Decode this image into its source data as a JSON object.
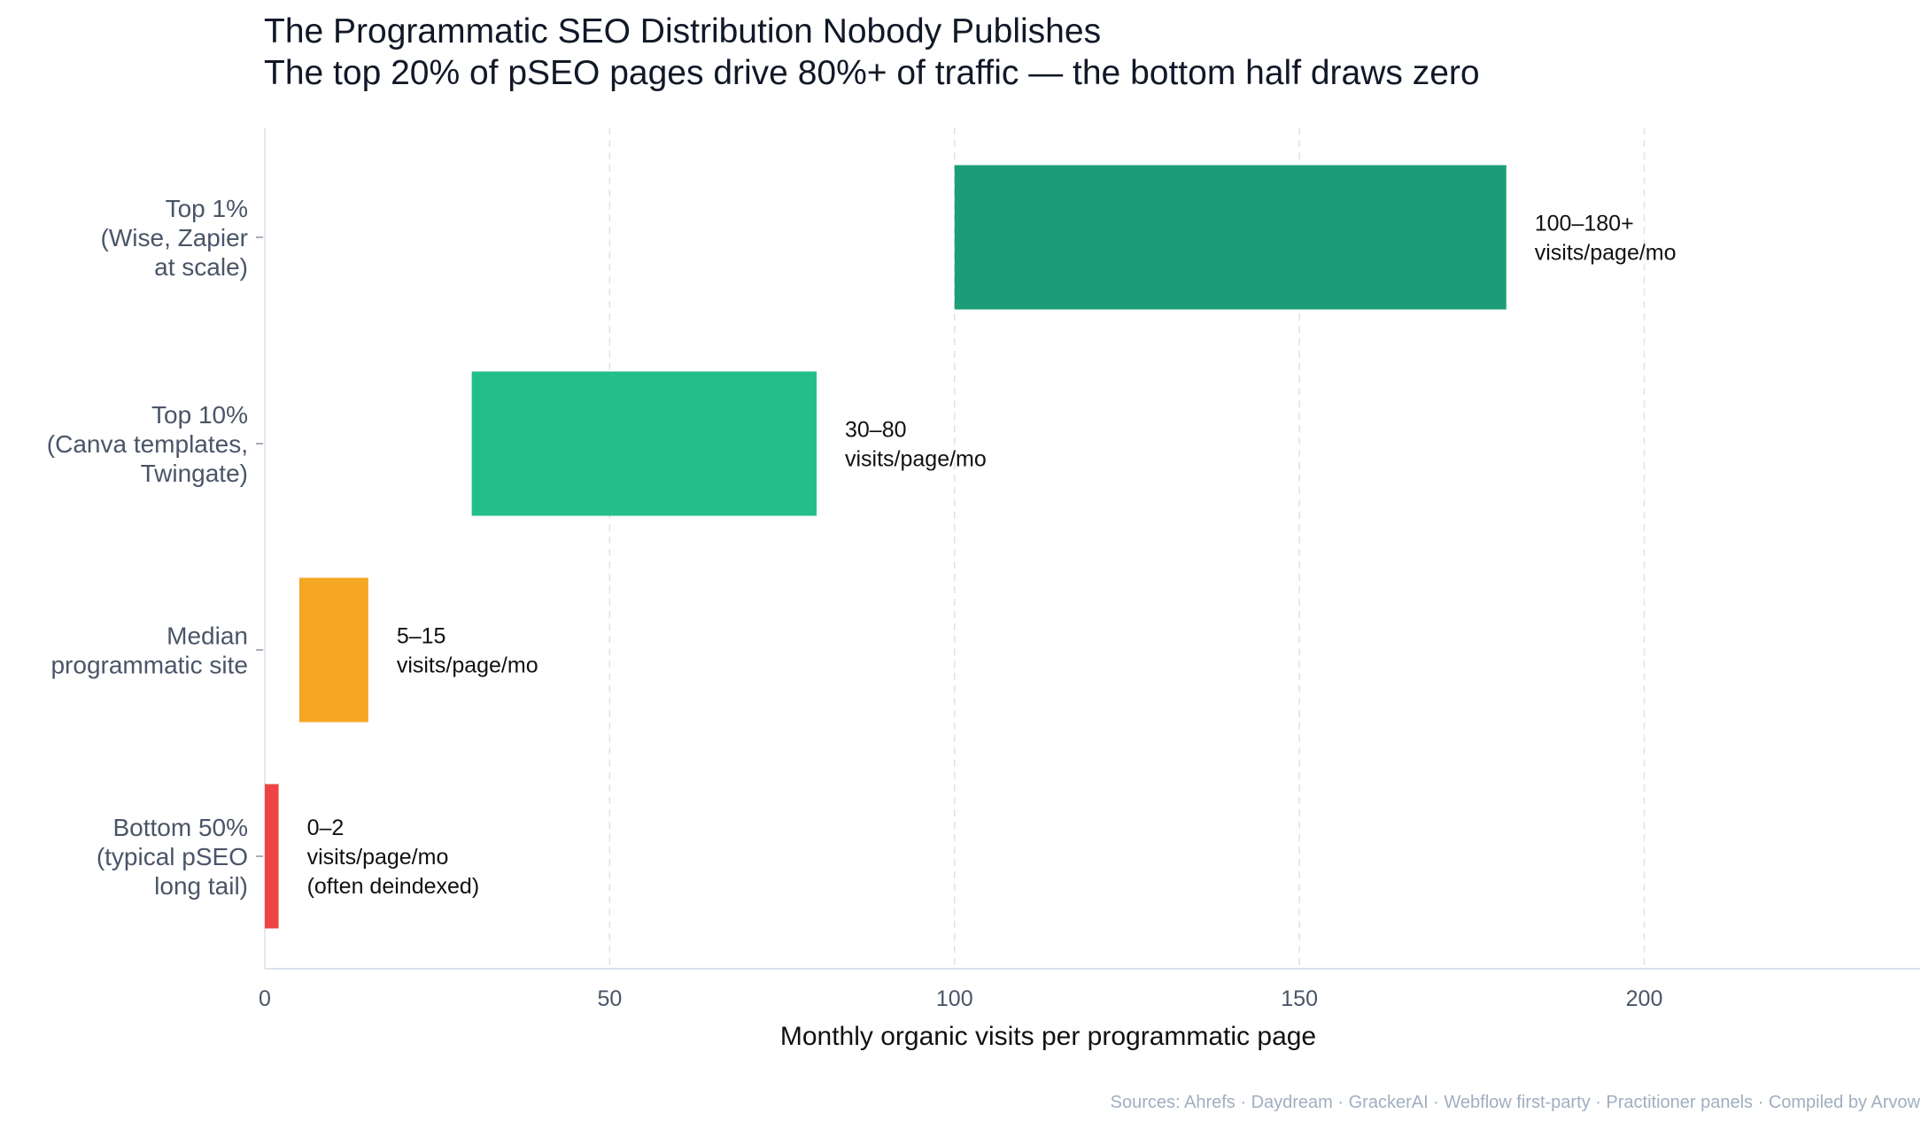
{
  "chart_data": {
    "type": "bar",
    "orientation": "horizontal",
    "subtype": "floating-range",
    "title": "The Programmatic SEO Distribution Nobody Publishes",
    "subtitle": "The top 20% of pSEO pages drive 80%+ of traffic — the bottom half draws zero",
    "xlabel": "Monthly organic visits per programmatic page",
    "ylabel": "",
    "xlim": [
      0,
      240
    ],
    "xticks": [
      0,
      50,
      100,
      150,
      200
    ],
    "grid": "vertical dashed",
    "categories": [
      {
        "label": [
          "Top 1%",
          "(Wise, Zapier",
          "at scale)"
        ],
        "low": 100,
        "high": 180,
        "color": "#1b9e77",
        "annotation": [
          "100–180+",
          "visits/page/mo"
        ]
      },
      {
        "label": [
          "Top 10%",
          "(Canva templates,",
          "Twingate)"
        ],
        "low": 30,
        "high": 80,
        "color": "#23bf8a",
        "annotation": [
          "30–80",
          "visits/page/mo"
        ]
      },
      {
        "label": [
          "Median",
          "programmatic site"
        ],
        "low": 5,
        "high": 15,
        "color": "#f5a623",
        "annotation": [
          "5–15",
          "visits/page/mo"
        ]
      },
      {
        "label": [
          "Bottom 50%",
          "(typical pSEO",
          "long tail)"
        ],
        "low": 0,
        "high": 2,
        "color": "#ef4444",
        "annotation": [
          "0–2",
          "visits/page/mo",
          "(often deindexed)"
        ]
      }
    ]
  },
  "footer": {
    "source": "Sources: Ahrefs · Daydream · GrackerAI · Webflow first-party · Practitioner panels · Compiled by Arvow"
  }
}
